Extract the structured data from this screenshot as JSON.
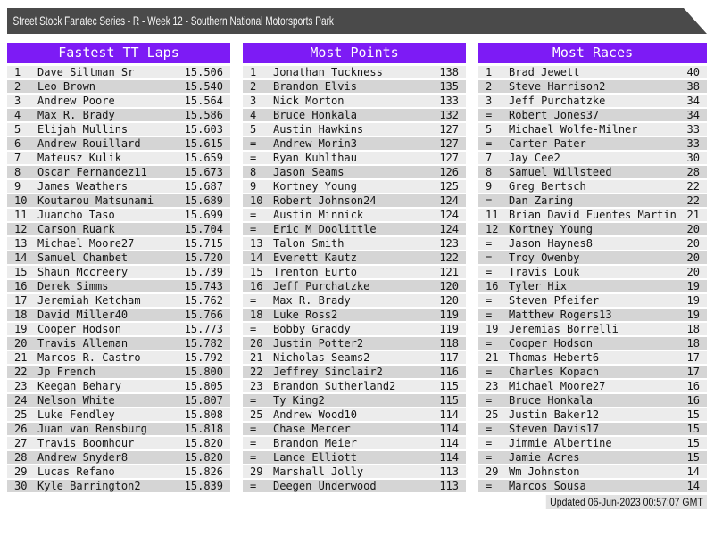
{
  "header": {
    "title": "Street Stock Fanatec Series - R - Week 12 - Southern National Motorsports Park"
  },
  "colors": {
    "accent": "#7d1bf5",
    "titlebar": "#4a4a4a",
    "row-light": "#ececec",
    "row-dark": "#d5d5d5",
    "header-text": "#ffffff"
  },
  "boards": [
    {
      "title": "Fastest TT Laps",
      "rows": [
        {
          "rank": "1",
          "name": "Dave Siltman Sr",
          "value": "15.506"
        },
        {
          "rank": "2",
          "name": "Leo Brown",
          "value": "15.540"
        },
        {
          "rank": "3",
          "name": "Andrew Poore",
          "value": "15.564"
        },
        {
          "rank": "4",
          "name": "Max R. Brady",
          "value": "15.586"
        },
        {
          "rank": "5",
          "name": "Elijah Mullins",
          "value": "15.603"
        },
        {
          "rank": "6",
          "name": "Andrew Rouillard",
          "value": "15.615"
        },
        {
          "rank": "7",
          "name": "Mateusz Kulik",
          "value": "15.659"
        },
        {
          "rank": "8",
          "name": "Oscar Fernandez11",
          "value": "15.673"
        },
        {
          "rank": "9",
          "name": "James Weathers",
          "value": "15.687"
        },
        {
          "rank": "10",
          "name": "Koutarou Matsunami",
          "value": "15.689"
        },
        {
          "rank": "11",
          "name": "Juancho Taso",
          "value": "15.699"
        },
        {
          "rank": "12",
          "name": "Carson Ruark",
          "value": "15.704"
        },
        {
          "rank": "13",
          "name": "Michael Moore27",
          "value": "15.715"
        },
        {
          "rank": "14",
          "name": "Samuel Chambet",
          "value": "15.720"
        },
        {
          "rank": "15",
          "name": "Shaun Mccreery",
          "value": "15.739"
        },
        {
          "rank": "16",
          "name": "Derek Simms",
          "value": "15.743"
        },
        {
          "rank": "17",
          "name": "Jeremiah Ketcham",
          "value": "15.762"
        },
        {
          "rank": "18",
          "name": "David Miller40",
          "value": "15.766"
        },
        {
          "rank": "19",
          "name": "Cooper Hodson",
          "value": "15.773"
        },
        {
          "rank": "20",
          "name": "Travis Alleman",
          "value": "15.782"
        },
        {
          "rank": "21",
          "name": "Marcos R. Castro",
          "value": "15.792"
        },
        {
          "rank": "22",
          "name": "Jp French",
          "value": "15.800"
        },
        {
          "rank": "23",
          "name": "Keegan Behary",
          "value": "15.805"
        },
        {
          "rank": "24",
          "name": "Nelson White",
          "value": "15.807"
        },
        {
          "rank": "25",
          "name": "Luke Fendley",
          "value": "15.808"
        },
        {
          "rank": "26",
          "name": "Juan van Rensburg",
          "value": "15.818"
        },
        {
          "rank": "27",
          "name": "Travis Boomhour",
          "value": "15.820"
        },
        {
          "rank": "28",
          "name": "Andrew Snyder8",
          "value": "15.820"
        },
        {
          "rank": "29",
          "name": "Lucas Refano",
          "value": "15.826"
        },
        {
          "rank": "30",
          "name": "Kyle Barrington2",
          "value": "15.839"
        }
      ]
    },
    {
      "title": "Most Points",
      "rows": [
        {
          "rank": "1",
          "name": "Jonathan Tuckness",
          "value": "138"
        },
        {
          "rank": "2",
          "name": "Brandon Elvis",
          "value": "135"
        },
        {
          "rank": "3",
          "name": "Nick Morton",
          "value": "133"
        },
        {
          "rank": "4",
          "name": "Bruce Honkala",
          "value": "132"
        },
        {
          "rank": "5",
          "name": "Austin Hawkins",
          "value": "127"
        },
        {
          "rank": "=",
          "name": "Andrew Morin3",
          "value": "127"
        },
        {
          "rank": "=",
          "name": "Ryan Kuhlthau",
          "value": "127"
        },
        {
          "rank": "8",
          "name": "Jason Seams",
          "value": "126"
        },
        {
          "rank": "9",
          "name": "Kortney Young",
          "value": "125"
        },
        {
          "rank": "10",
          "name": "Robert Johnson24",
          "value": "124"
        },
        {
          "rank": "=",
          "name": "Austin Minnick",
          "value": "124"
        },
        {
          "rank": "=",
          "name": "Eric M Doolittle",
          "value": "124"
        },
        {
          "rank": "13",
          "name": "Talon Smith",
          "value": "123"
        },
        {
          "rank": "14",
          "name": "Everett Kautz",
          "value": "122"
        },
        {
          "rank": "15",
          "name": "Trenton Eurto",
          "value": "121"
        },
        {
          "rank": "16",
          "name": "Jeff Purchatzke",
          "value": "120"
        },
        {
          "rank": "=",
          "name": "Max R. Brady",
          "value": "120"
        },
        {
          "rank": "18",
          "name": "Luke Ross2",
          "value": "119"
        },
        {
          "rank": "=",
          "name": "Bobby Graddy",
          "value": "119"
        },
        {
          "rank": "20",
          "name": "Justin Potter2",
          "value": "118"
        },
        {
          "rank": "21",
          "name": "Nicholas Seams2",
          "value": "117"
        },
        {
          "rank": "22",
          "name": "Jeffrey Sinclair2",
          "value": "116"
        },
        {
          "rank": "23",
          "name": "Brandon Sutherland2",
          "value": "115"
        },
        {
          "rank": "=",
          "name": "Ty King2",
          "value": "115"
        },
        {
          "rank": "25",
          "name": "Andrew Wood10",
          "value": "114"
        },
        {
          "rank": "=",
          "name": "Chase Mercer",
          "value": "114"
        },
        {
          "rank": "=",
          "name": "Brandon Meier",
          "value": "114"
        },
        {
          "rank": "=",
          "name": "Lance Elliott",
          "value": "114"
        },
        {
          "rank": "29",
          "name": "Marshall Jolly",
          "value": "113"
        },
        {
          "rank": "=",
          "name": "Deegen Underwood",
          "value": "113"
        }
      ]
    },
    {
      "title": "Most Races",
      "rows": [
        {
          "rank": "1",
          "name": "Brad Jewett",
          "value": "40"
        },
        {
          "rank": "2",
          "name": "Steve Harrison2",
          "value": "38"
        },
        {
          "rank": "3",
          "name": "Jeff Purchatzke",
          "value": "34"
        },
        {
          "rank": "=",
          "name": "Robert Jones37",
          "value": "34"
        },
        {
          "rank": "5",
          "name": "Michael Wolfe-Milner",
          "value": "33"
        },
        {
          "rank": "=",
          "name": "Carter Pater",
          "value": "33"
        },
        {
          "rank": "7",
          "name": "Jay Cee2",
          "value": "30"
        },
        {
          "rank": "8",
          "name": "Samuel Willsteed",
          "value": "28"
        },
        {
          "rank": "9",
          "name": "Greg Bertsch",
          "value": "22"
        },
        {
          "rank": "=",
          "name": "Dan Zaring",
          "value": "22"
        },
        {
          "rank": "11",
          "name": "Brian David Fuentes Martin",
          "value": "21"
        },
        {
          "rank": "12",
          "name": "Kortney Young",
          "value": "20"
        },
        {
          "rank": "=",
          "name": "Jason Haynes8",
          "value": "20"
        },
        {
          "rank": "=",
          "name": "Troy Owenby",
          "value": "20"
        },
        {
          "rank": "=",
          "name": "Travis Louk",
          "value": "20"
        },
        {
          "rank": "16",
          "name": "Tyler Hix",
          "value": "19"
        },
        {
          "rank": "=",
          "name": "Steven Pfeifer",
          "value": "19"
        },
        {
          "rank": "=",
          "name": "Matthew Rogers13",
          "value": "19"
        },
        {
          "rank": "19",
          "name": "Jeremias Borrelli",
          "value": "18"
        },
        {
          "rank": "=",
          "name": "Cooper Hodson",
          "value": "18"
        },
        {
          "rank": "21",
          "name": "Thomas Hebert6",
          "value": "17"
        },
        {
          "rank": "=",
          "name": "Charles Kopach",
          "value": "17"
        },
        {
          "rank": "23",
          "name": "Michael Moore27",
          "value": "16"
        },
        {
          "rank": "=",
          "name": "Bruce Honkala",
          "value": "16"
        },
        {
          "rank": "25",
          "name": "Justin Baker12",
          "value": "15"
        },
        {
          "rank": "=",
          "name": "Steven Davis17",
          "value": "15"
        },
        {
          "rank": "=",
          "name": "Jimmie Albertine",
          "value": "15"
        },
        {
          "rank": "=",
          "name": "Jamie Acres",
          "value": "15"
        },
        {
          "rank": "29",
          "name": "Wm Johnston",
          "value": "14"
        },
        {
          "rank": "=",
          "name": "Marcos Sousa",
          "value": "14"
        }
      ]
    }
  ],
  "footer": {
    "updated": "Updated 06-Jun-2023 00:57:07 GMT"
  }
}
